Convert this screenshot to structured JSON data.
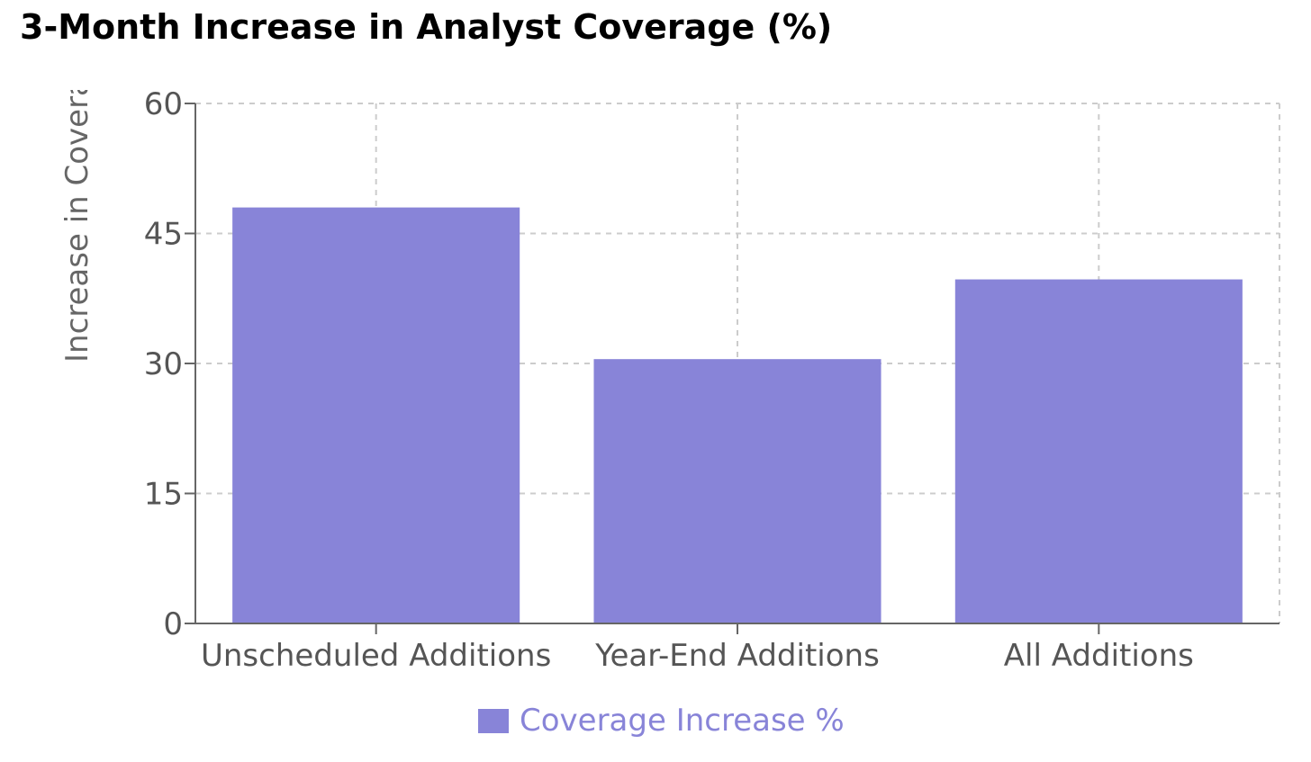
{
  "chart_data": {
    "type": "bar",
    "title": "3-Month Increase in Analyst Coverage (%)",
    "xlabel": "",
    "ylabel": "Increase in Coverage (%)",
    "categories": [
      "Unscheduled Additions",
      "Year-End Additions",
      "All Additions"
    ],
    "series": [
      {
        "name": "Coverage Increase %",
        "values": [
          48,
          30.5,
          39.7
        ],
        "color": "#8884d8"
      }
    ],
    "ylim": [
      0,
      60
    ],
    "yticks": [
      "0",
      "15",
      "30",
      "45",
      "60"
    ],
    "grid": true,
    "legend": "bottom-center"
  }
}
